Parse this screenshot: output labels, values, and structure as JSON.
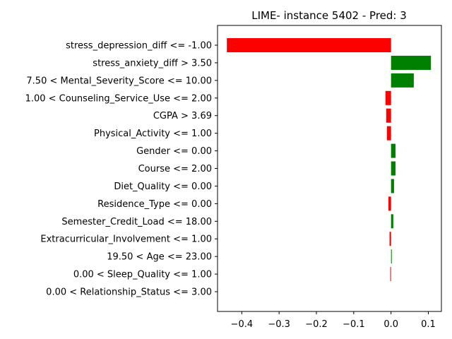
{
  "chart_data": {
    "type": "bar",
    "orientation": "horizontal",
    "title": "LIME- instance 5402 - Pred: 3",
    "xlabel": "",
    "ylabel": "",
    "xlim": [
      -0.465,
      0.135
    ],
    "xticks": [
      -0.4,
      -0.3,
      -0.2,
      -0.1,
      0.0,
      0.1
    ],
    "xtick_labels": [
      "−0.4",
      "−0.3",
      "−0.2",
      "−0.1",
      "0.0",
      "0.1"
    ],
    "grid": false,
    "legend": "none",
    "positive_color": "#008000",
    "negative_color": "#ff0000",
    "categories": [
      "stress_depression_diff <= -1.00",
      "stress_anxiety_diff > 3.50",
      "7.50 < Mental_Severity_Score <= 10.00",
      "1.00 < Counseling_Service_Use <= 2.00",
      "CGPA > 3.69",
      "Physical_Activity <= 1.00",
      "Gender <= 0.00",
      "Course <= 2.00",
      "Diet_Quality <= 0.00",
      "Residence_Type <= 0.00",
      "Semester_Credit_Load <= 18.00",
      "Extracurricular_Involvement <= 1.00",
      "19.50 < Age <= 23.00",
      "0.00 < Sleep_Quality <= 1.00",
      "0.00 < Relationship_Status <= 3.00"
    ],
    "values": [
      -0.44,
      0.107,
      0.061,
      -0.015,
      -0.013,
      -0.011,
      0.012,
      0.012,
      0.008,
      -0.007,
      0.006,
      -0.004,
      0.002,
      -0.002,
      0.0
    ]
  }
}
